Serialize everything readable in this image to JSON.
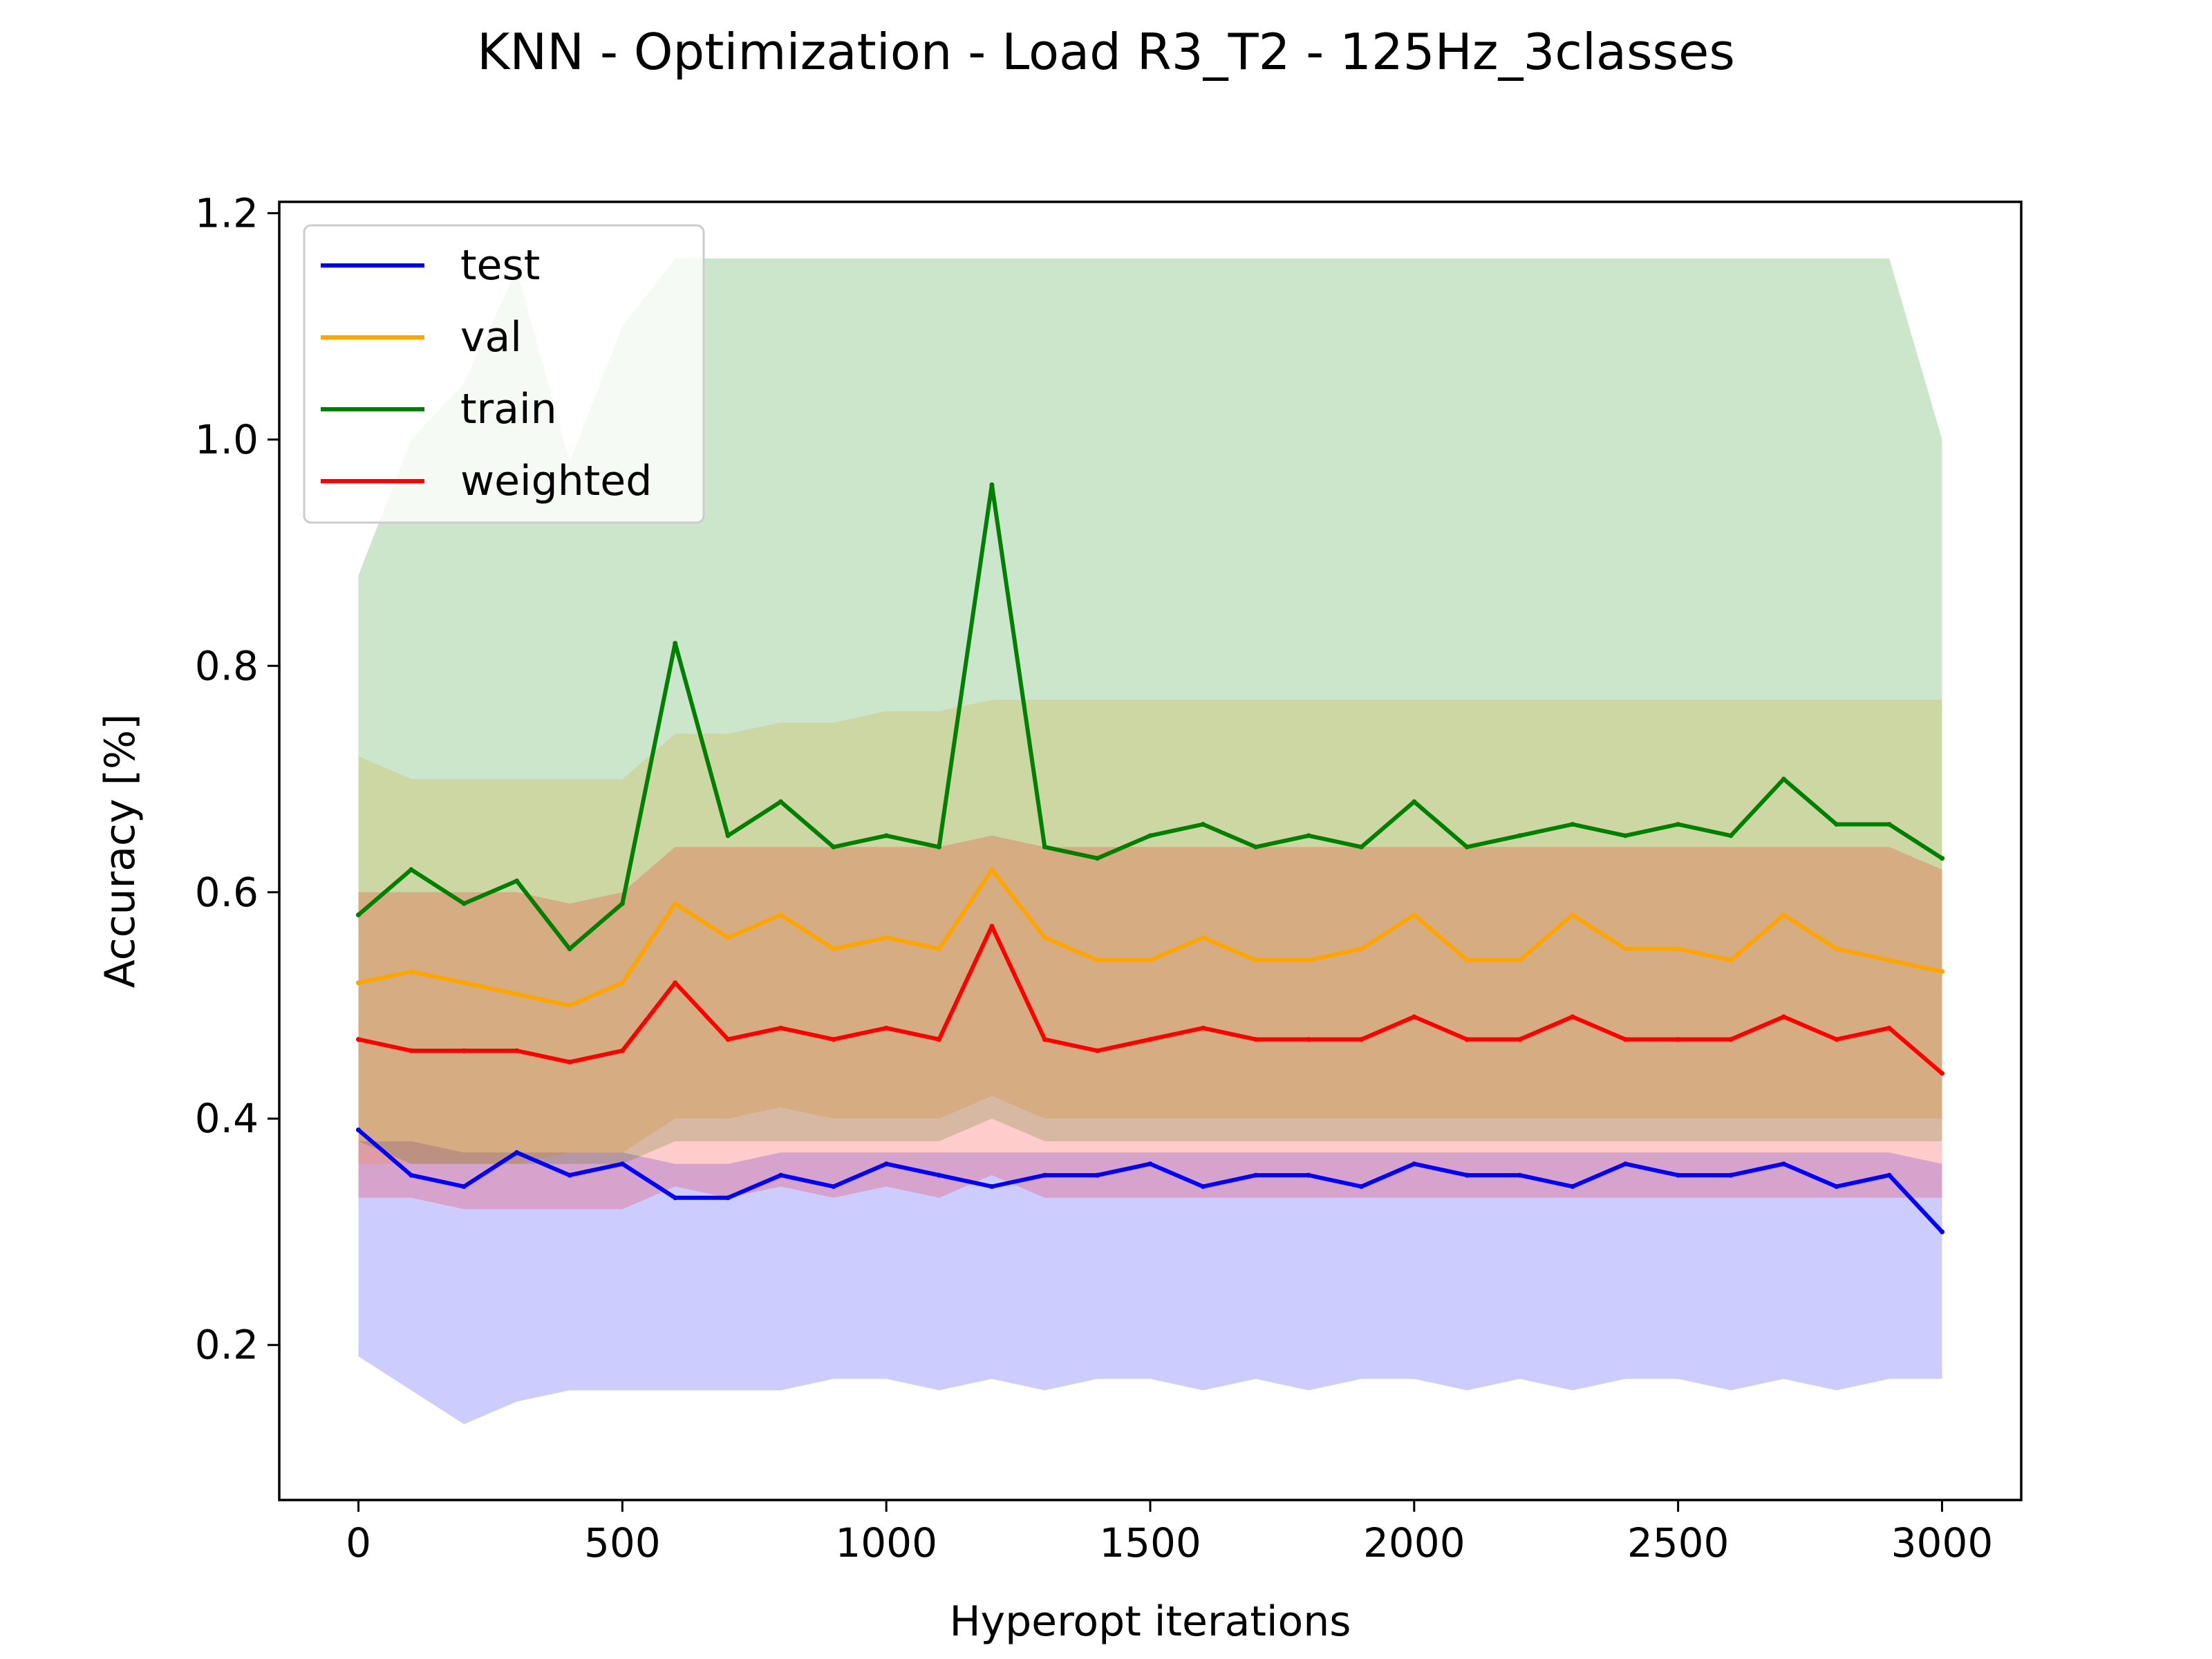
{
  "chart_data": {
    "type": "line",
    "title": "KNN - Optimization - Load R3_T2 - 125Hz_3classes",
    "xlabel": "Hyperopt iterations",
    "ylabel": "Accuracy [%]",
    "xlim": [
      -150,
      3150
    ],
    "ylim": [
      0.063,
      1.21
    ],
    "xticks": [
      0,
      500,
      1000,
      1500,
      2000,
      2500,
      3000
    ],
    "xtick_labels": [
      "0",
      "500",
      "1000",
      "1500",
      "2000",
      "2500",
      "3000"
    ],
    "yticks": [
      0.2,
      0.4,
      0.6,
      0.8,
      1.0,
      1.2
    ],
    "ytick_labels": [
      "0.2",
      "0.4",
      "0.6",
      "0.8",
      "1.0",
      "1.2"
    ],
    "grid": false,
    "legend": "upper-left",
    "x": [
      0,
      100,
      200,
      300,
      400,
      500,
      600,
      700,
      800,
      900,
      1000,
      1100,
      1200,
      1300,
      1400,
      1500,
      1600,
      1700,
      1800,
      1900,
      2000,
      2100,
      2200,
      2300,
      2400,
      2500,
      2600,
      2700,
      2800,
      2900,
      3000
    ],
    "series": [
      {
        "name": "test",
        "color": "#0000ff",
        "values": [
          0.39,
          0.35,
          0.34,
          0.37,
          0.35,
          0.36,
          0.33,
          0.33,
          0.35,
          0.34,
          0.36,
          0.35,
          0.34,
          0.35,
          0.35,
          0.36,
          0.34,
          0.35,
          0.35,
          0.34,
          0.36,
          0.35,
          0.35,
          0.34,
          0.36,
          0.35,
          0.35,
          0.36,
          0.34,
          0.35,
          0.3
        ],
        "band": [
          [
            0.19,
            0.38
          ],
          [
            0.16,
            0.38
          ],
          [
            0.13,
            0.37
          ],
          [
            0.15,
            0.37
          ],
          [
            0.16,
            0.37
          ],
          [
            0.16,
            0.37
          ],
          [
            0.16,
            0.36
          ],
          [
            0.16,
            0.36
          ],
          [
            0.16,
            0.37
          ],
          [
            0.17,
            0.37
          ],
          [
            0.17,
            0.37
          ],
          [
            0.16,
            0.37
          ],
          [
            0.17,
            0.37
          ],
          [
            0.16,
            0.37
          ],
          [
            0.17,
            0.37
          ],
          [
            0.17,
            0.37
          ],
          [
            0.16,
            0.37
          ],
          [
            0.17,
            0.37
          ],
          [
            0.16,
            0.37
          ],
          [
            0.17,
            0.37
          ],
          [
            0.17,
            0.37
          ],
          [
            0.16,
            0.37
          ],
          [
            0.17,
            0.37
          ],
          [
            0.16,
            0.37
          ],
          [
            0.17,
            0.37
          ],
          [
            0.17,
            0.37
          ],
          [
            0.16,
            0.37
          ],
          [
            0.17,
            0.37
          ],
          [
            0.16,
            0.37
          ],
          [
            0.17,
            0.37
          ],
          [
            0.17,
            0.36
          ]
        ]
      },
      {
        "name": "val",
        "color": "#ffa500",
        "values": [
          0.52,
          0.53,
          0.52,
          0.51,
          0.5,
          0.52,
          0.59,
          0.56,
          0.58,
          0.55,
          0.56,
          0.55,
          0.62,
          0.56,
          0.54,
          0.54,
          0.56,
          0.54,
          0.54,
          0.55,
          0.58,
          0.54,
          0.54,
          0.58,
          0.55,
          0.55,
          0.54,
          0.58,
          0.55,
          0.54,
          0.53
        ],
        "band": [
          [
            0.36,
            0.72
          ],
          [
            0.36,
            0.7
          ],
          [
            0.36,
            0.7
          ],
          [
            0.36,
            0.7
          ],
          [
            0.37,
            0.7
          ],
          [
            0.37,
            0.7
          ],
          [
            0.4,
            0.74
          ],
          [
            0.4,
            0.74
          ],
          [
            0.41,
            0.75
          ],
          [
            0.4,
            0.75
          ],
          [
            0.4,
            0.76
          ],
          [
            0.4,
            0.76
          ],
          [
            0.42,
            0.77
          ],
          [
            0.4,
            0.77
          ],
          [
            0.4,
            0.77
          ],
          [
            0.4,
            0.77
          ],
          [
            0.4,
            0.77
          ],
          [
            0.4,
            0.77
          ],
          [
            0.4,
            0.77
          ],
          [
            0.4,
            0.77
          ],
          [
            0.4,
            0.77
          ],
          [
            0.4,
            0.77
          ],
          [
            0.4,
            0.77
          ],
          [
            0.4,
            0.77
          ],
          [
            0.4,
            0.77
          ],
          [
            0.4,
            0.77
          ],
          [
            0.4,
            0.77
          ],
          [
            0.4,
            0.77
          ],
          [
            0.4,
            0.77
          ],
          [
            0.4,
            0.77
          ],
          [
            0.4,
            0.77
          ]
        ]
      },
      {
        "name": "train",
        "color": "#008000",
        "values": [
          0.58,
          0.62,
          0.59,
          0.61,
          0.55,
          0.59,
          0.82,
          0.65,
          0.68,
          0.64,
          0.65,
          0.64,
          0.96,
          0.64,
          0.63,
          0.65,
          0.66,
          0.64,
          0.65,
          0.64,
          0.68,
          0.64,
          0.65,
          0.66,
          0.65,
          0.66,
          0.65,
          0.7,
          0.66,
          0.66,
          0.63
        ],
        "band": [
          [
            0.38,
            0.88
          ],
          [
            0.36,
            1.0
          ],
          [
            0.36,
            1.05
          ],
          [
            0.36,
            1.15
          ],
          [
            0.36,
            0.98
          ],
          [
            0.36,
            1.1
          ],
          [
            0.38,
            1.16
          ],
          [
            0.38,
            1.16
          ],
          [
            0.38,
            1.16
          ],
          [
            0.38,
            1.16
          ],
          [
            0.38,
            1.16
          ],
          [
            0.38,
            1.16
          ],
          [
            0.4,
            1.16
          ],
          [
            0.38,
            1.16
          ],
          [
            0.38,
            1.16
          ],
          [
            0.38,
            1.16
          ],
          [
            0.38,
            1.16
          ],
          [
            0.38,
            1.16
          ],
          [
            0.38,
            1.16
          ],
          [
            0.38,
            1.16
          ],
          [
            0.38,
            1.16
          ],
          [
            0.38,
            1.16
          ],
          [
            0.38,
            1.16
          ],
          [
            0.38,
            1.16
          ],
          [
            0.38,
            1.16
          ],
          [
            0.38,
            1.16
          ],
          [
            0.38,
            1.16
          ],
          [
            0.38,
            1.16
          ],
          [
            0.38,
            1.16
          ],
          [
            0.38,
            1.16
          ],
          [
            0.38,
            1.0
          ]
        ]
      },
      {
        "name": "weighted",
        "color": "#ff0000",
        "values": [
          0.47,
          0.46,
          0.46,
          0.46,
          0.45,
          0.46,
          0.52,
          0.47,
          0.48,
          0.47,
          0.48,
          0.47,
          0.57,
          0.47,
          0.46,
          0.47,
          0.48,
          0.47,
          0.47,
          0.47,
          0.49,
          0.47,
          0.47,
          0.49,
          0.47,
          0.47,
          0.47,
          0.49,
          0.47,
          0.48,
          0.44
        ],
        "band": [
          [
            0.33,
            0.6
          ],
          [
            0.33,
            0.6
          ],
          [
            0.32,
            0.6
          ],
          [
            0.32,
            0.6
          ],
          [
            0.32,
            0.59
          ],
          [
            0.32,
            0.6
          ],
          [
            0.34,
            0.64
          ],
          [
            0.33,
            0.64
          ],
          [
            0.34,
            0.64
          ],
          [
            0.33,
            0.64
          ],
          [
            0.34,
            0.64
          ],
          [
            0.33,
            0.64
          ],
          [
            0.35,
            0.65
          ],
          [
            0.33,
            0.64
          ],
          [
            0.33,
            0.64
          ],
          [
            0.33,
            0.64
          ],
          [
            0.33,
            0.64
          ],
          [
            0.33,
            0.64
          ],
          [
            0.33,
            0.64
          ],
          [
            0.33,
            0.64
          ],
          [
            0.33,
            0.64
          ],
          [
            0.33,
            0.64
          ],
          [
            0.33,
            0.64
          ],
          [
            0.33,
            0.64
          ],
          [
            0.33,
            0.64
          ],
          [
            0.33,
            0.64
          ],
          [
            0.33,
            0.64
          ],
          [
            0.33,
            0.64
          ],
          [
            0.33,
            0.64
          ],
          [
            0.33,
            0.64
          ],
          [
            0.33,
            0.62
          ]
        ]
      }
    ]
  }
}
